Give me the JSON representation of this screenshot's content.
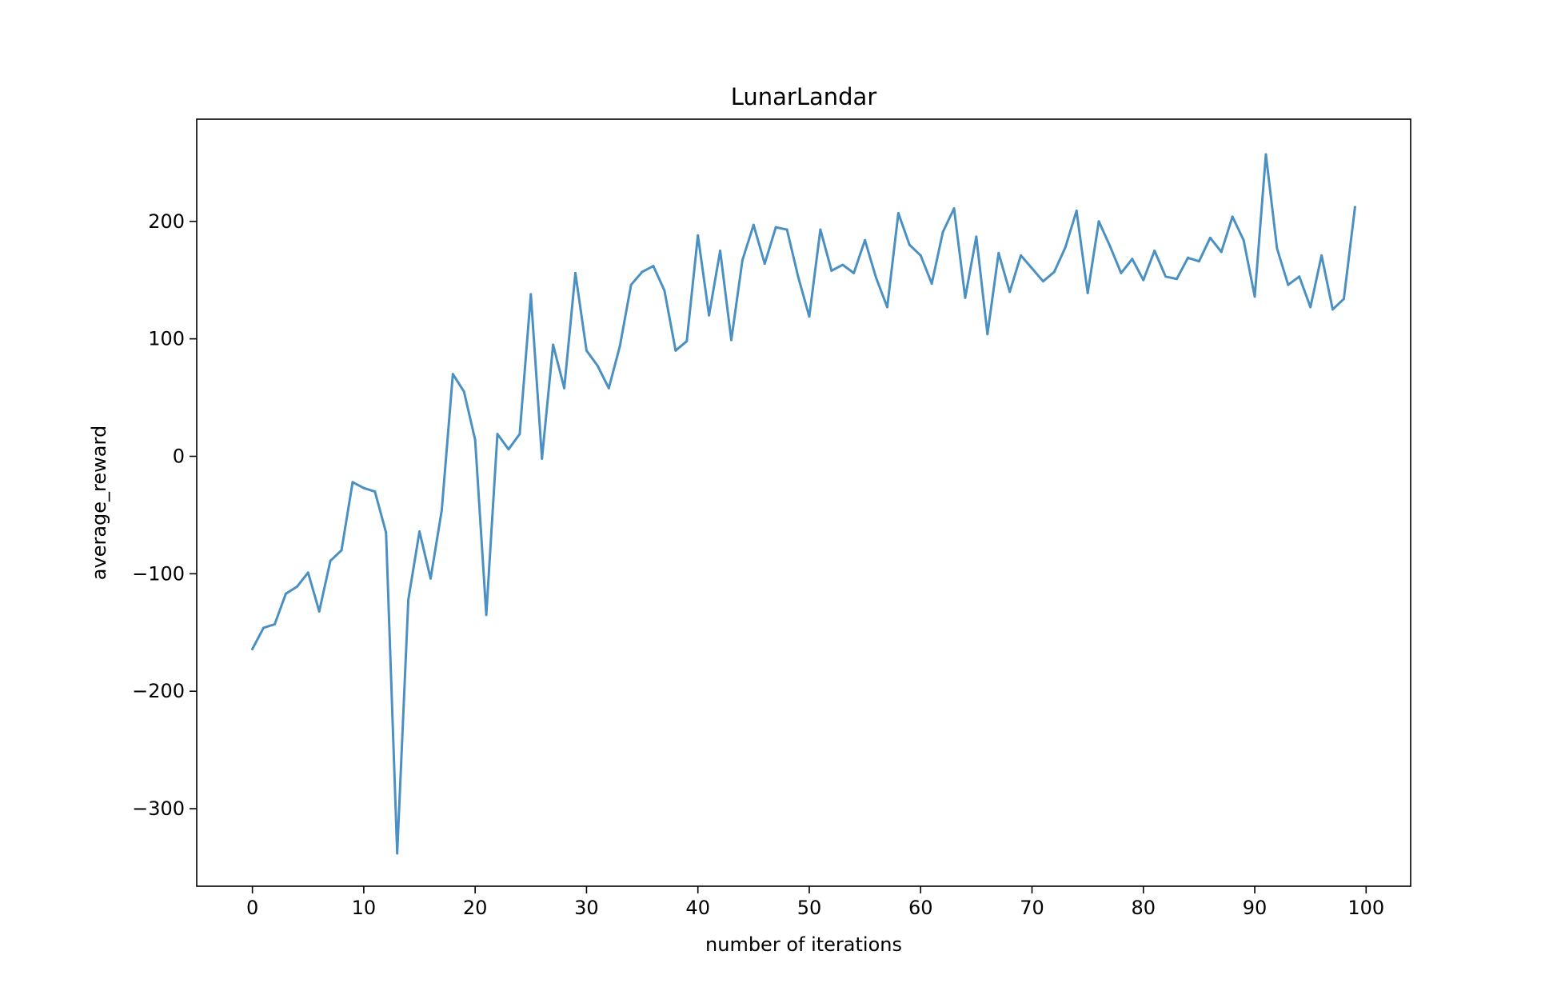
{
  "chart_data": {
    "type": "line",
    "title": "LunarLandar",
    "xlabel": "number of iterations",
    "ylabel": "average_reward",
    "xlim": [
      -5,
      104
    ],
    "ylim": [
      -366,
      287
    ],
    "xticks": [
      0,
      10,
      20,
      30,
      40,
      50,
      60,
      70,
      80,
      90,
      100
    ],
    "yticks": [
      -300,
      -200,
      -100,
      0,
      100,
      200
    ],
    "xtick_labels": [
      "0",
      "10",
      "20",
      "30",
      "40",
      "50",
      "60",
      "70",
      "80",
      "90",
      "100"
    ],
    "ytick_labels": [
      "−300",
      "−200",
      "−100",
      "0",
      "100",
      "200"
    ],
    "grid": false,
    "series": [
      {
        "color": "#4a90c2",
        "x": [
          0,
          1,
          2,
          3,
          4,
          5,
          6,
          7,
          8,
          9,
          10,
          11,
          12,
          13,
          14,
          15,
          16,
          17,
          18,
          19,
          20,
          21,
          22,
          23,
          24,
          25,
          26,
          27,
          28,
          29,
          30,
          31,
          32,
          33,
          34,
          35,
          36,
          37,
          38,
          39,
          40,
          41,
          42,
          43,
          44,
          45,
          46,
          47,
          48,
          49,
          50,
          51,
          52,
          53,
          54,
          55,
          56,
          57,
          58,
          59,
          60,
          61,
          62,
          63,
          64,
          65,
          66,
          67,
          68,
          69,
          70,
          71,
          72,
          73,
          74,
          75,
          76,
          77,
          78,
          79,
          80,
          81,
          82,
          83,
          84,
          85,
          86,
          87,
          88,
          89,
          90,
          91,
          92,
          93,
          94,
          95,
          96,
          97,
          98,
          99
        ],
        "y": [
          -164,
          -146,
          -143,
          -117,
          -111,
          -99,
          -132,
          -89,
          -80,
          -22,
          -27,
          -30,
          -65,
          -338,
          -122,
          -64,
          -104,
          -46,
          70,
          55,
          14,
          -135,
          19,
          6,
          19,
          138,
          -2,
          95,
          58,
          156,
          90,
          77,
          58,
          94,
          146,
          157,
          162,
          141,
          90,
          98,
          188,
          120,
          175,
          99,
          167,
          197,
          164,
          195,
          193,
          153,
          119,
          193,
          158,
          163,
          156,
          184,
          152,
          127,
          207,
          180,
          171,
          147,
          191,
          211,
          135,
          187,
          104,
          173,
          140,
          171,
          160,
          149,
          157,
          178,
          209,
          139,
          200,
          179,
          156,
          168,
          150,
          175,
          153,
          151,
          169,
          166,
          186,
          174,
          204,
          184,
          136,
          257,
          177,
          146,
          153,
          127,
          171,
          125,
          134,
          212
        ]
      }
    ]
  }
}
